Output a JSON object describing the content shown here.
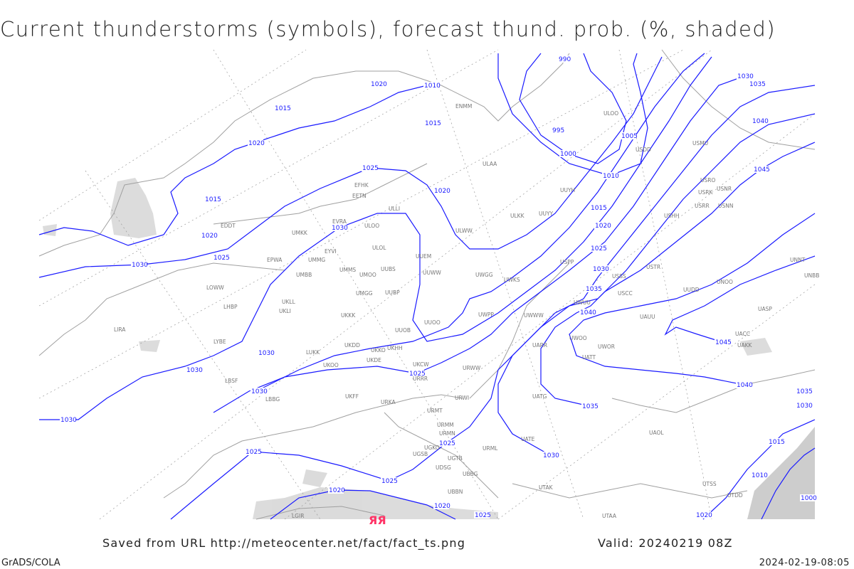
{
  "title": "Current thunderstorms (symbols), forecast thund. prob. (%, shaded)",
  "footer": {
    "saved": "Saved from URL http://meteocenter.net/fact/fact_ts.png",
    "valid": "Valid: 20240219 08Z",
    "software": "GrADS/COLA",
    "generated": "2024-02-19-08:05"
  },
  "colors": {
    "isobar": "#1a1aff",
    "coastline": "#a0a0a0",
    "probability_shading": "#d8d8d8",
    "thunderstorm_symbol": "#ff3366"
  },
  "thunderstorm_symbols": [
    "ЯЯ"
  ],
  "isobar_labels": [
    "990",
    "1020",
    "1010",
    "1015",
    "1015",
    "995",
    "1005",
    "1020",
    "1000",
    "1025",
    "1010",
    "1020",
    "1015",
    "1015",
    "1020",
    "1030",
    "1020",
    "1025",
    "1030",
    "1025",
    "1030",
    "1035",
    "1040",
    "1030",
    "1030",
    "1025",
    "1030",
    "1030",
    "1035",
    "1025",
    "1030",
    "1025",
    "1025",
    "1020",
    "1020",
    "1025",
    "1020",
    "1030",
    "1035",
    "1040",
    "1045",
    "1045",
    "1040",
    "1035",
    "1030",
    "1015",
    "1010",
    "1000"
  ],
  "stations": [
    "ENMM",
    "ULOO",
    "ULAA",
    "UUYH",
    "USDD",
    "USMU",
    "ULKK",
    "UUYY",
    "USRO",
    "USRK",
    "USNR",
    "USRR",
    "USNN",
    "USHH",
    "EFHK",
    "EETN",
    "ULLI",
    "EVRA",
    "ULOO",
    "UMKK",
    "EYVI",
    "ULOL",
    "UUEM",
    "ULWW",
    "UMMG",
    "UMMS",
    "UMOO",
    "UUBS",
    "UMBB",
    "EPWA",
    "UUWW",
    "UWGG",
    "UWKS",
    "UMGG",
    "UUBP",
    "UUOO",
    "UWWW",
    "UWUU",
    "USPP",
    "USSS",
    "USTR",
    "UNOO",
    "UUDD",
    "UKLL",
    "UKLI",
    "LHBP",
    "UKKK",
    "UUOB",
    "UWPP",
    "USCC",
    "UACC",
    "UAKK",
    "LYBE",
    "LUKK",
    "UKHH",
    "UKDD",
    "UKKO",
    "UKOO",
    "UKDE",
    "UKCW",
    "URWW",
    "UATT",
    "UARR",
    "UWOO",
    "UWOR",
    "LBSF",
    "LBBG",
    "UKFF",
    "URKA",
    "URRR",
    "URWI",
    "UATG",
    "URMT",
    "URMM",
    "URMN",
    "UGSB",
    "UGTB",
    "UDSG",
    "UBBG",
    "UBBN",
    "UGKO",
    "URML",
    "UATE",
    "UAOL",
    "UAUU",
    "UTAA",
    "UTAK",
    "UTDD",
    "UTSS",
    "LGIR",
    "LIRA",
    "LOWW",
    "EDDT",
    "UNNT",
    "UNBB",
    "UASP"
  ]
}
